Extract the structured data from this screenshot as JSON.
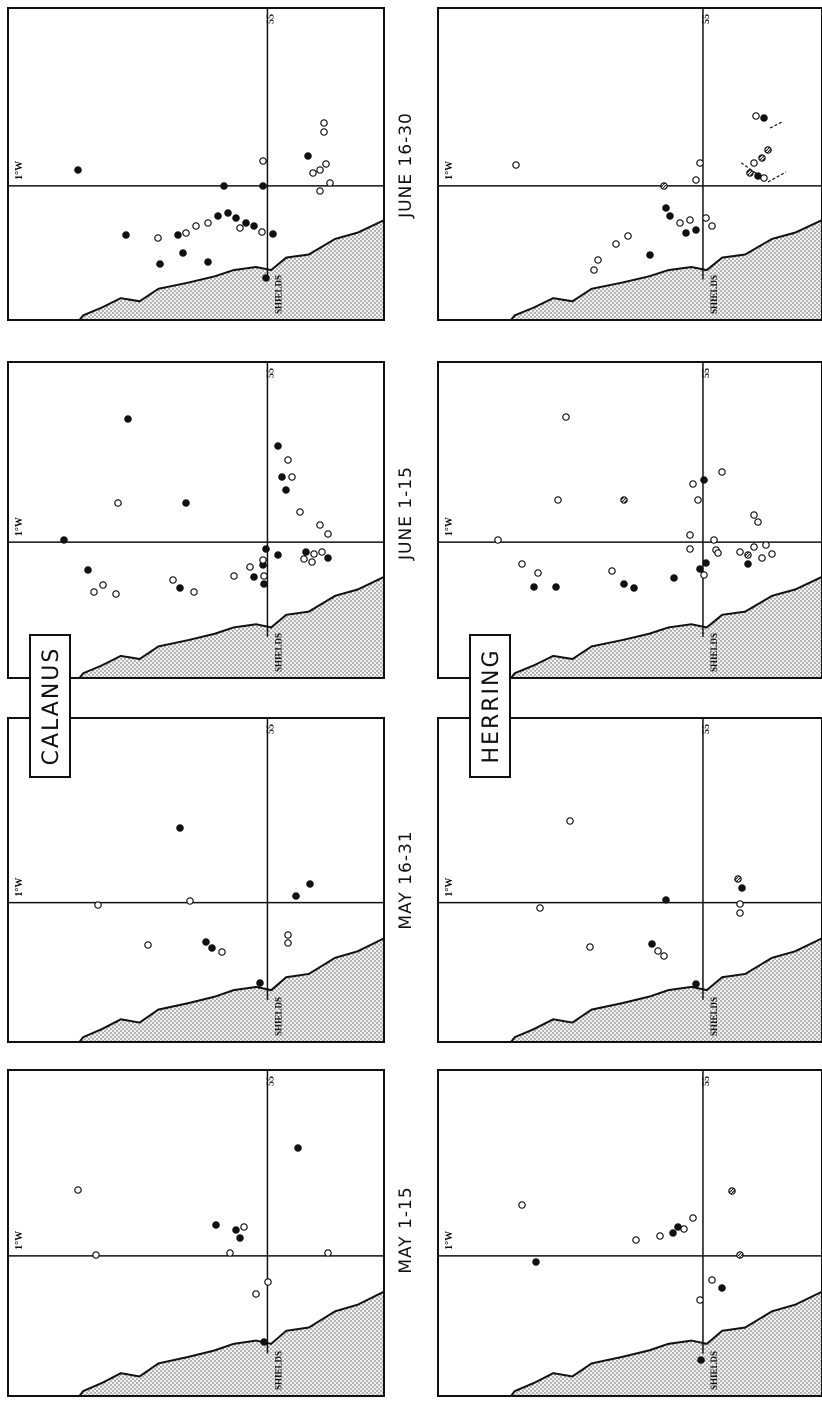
{
  "figure": {
    "species": [
      "CALANUS",
      "HERRING"
    ],
    "periods": [
      "JUNE 16-30",
      "JUNE 1-15",
      "MAY 16-31",
      "MAY 1-15"
    ]
  },
  "map_labels": {
    "port": "SHIELDS",
    "longitude": "1°W",
    "latitude": "55"
  },
  "legend_symbols": {
    "filled": "filled-circle",
    "open": "open-circle",
    "hatched": "hatched-circle"
  },
  "colors": {
    "ink": "#111111",
    "land_fill": "#d9d9d9"
  }
}
